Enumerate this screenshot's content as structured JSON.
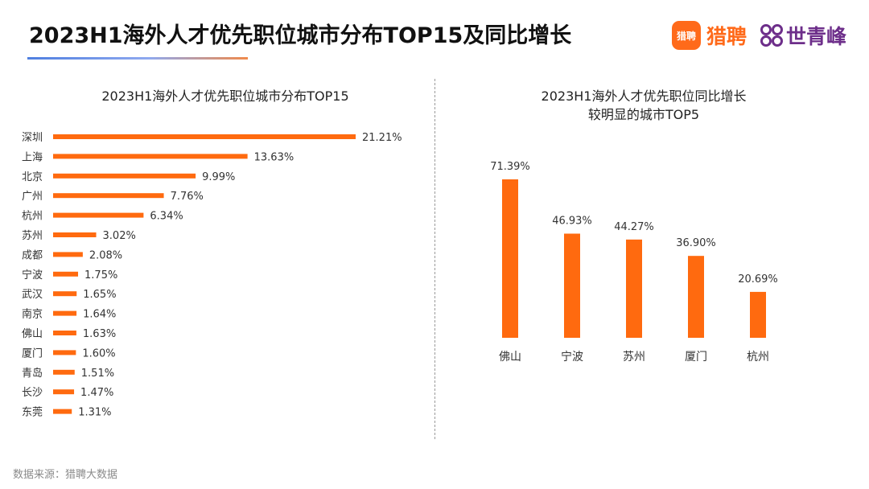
{
  "header": {
    "title": "2023H1海外人才优先职位城市分布TOP15及同比增长",
    "logo_badge": "猎聘",
    "logo_text_a": "猎聘",
    "logo_text_b": "世青峰"
  },
  "footer": {
    "source": "数据来源：猎聘大数据"
  },
  "colors": {
    "bar": "#ff6a0f",
    "accent_blue": "#4f7fe0",
    "logo_orange": "#ff6a1a",
    "logo_purple": "#6d2e8a"
  },
  "chart_data": [
    {
      "type": "bar",
      "orientation": "horizontal",
      "title": "2023H1海外人才优先职位城市分布TOP15",
      "categories": [
        "深圳",
        "上海",
        "北京",
        "广州",
        "杭州",
        "苏州",
        "成都",
        "宁波",
        "武汉",
        "南京",
        "佛山",
        "厦门",
        "青岛",
        "长沙",
        "东莞"
      ],
      "values": [
        21.21,
        13.63,
        9.99,
        7.76,
        6.34,
        3.02,
        2.08,
        1.75,
        1.65,
        1.64,
        1.63,
        1.6,
        1.51,
        1.47,
        1.31
      ],
      "labels": [
        "21.21%",
        "13.63%",
        "9.99%",
        "7.76%",
        "6.34%",
        "3.02%",
        "2.08%",
        "1.75%",
        "1.65%",
        "1.64%",
        "1.63%",
        "1.60%",
        "1.51%",
        "1.47%",
        "1.31%"
      ],
      "unit": "%",
      "xlabel": "",
      "ylabel": "",
      "xlim": [
        0,
        21.21
      ],
      "grid": false
    },
    {
      "type": "bar",
      "orientation": "vertical",
      "title_lines": [
        "2023H1海外人才优先职位同比增长",
        "较明显的城市TOP5"
      ],
      "categories": [
        "佛山",
        "宁波",
        "苏州",
        "厦门",
        "杭州"
      ],
      "values": [
        71.39,
        46.93,
        44.27,
        36.9,
        20.69
      ],
      "labels": [
        "71.39%",
        "46.93%",
        "44.27%",
        "36.90%",
        "20.69%"
      ],
      "unit": "%",
      "xlabel": "",
      "ylabel": "",
      "ylim": [
        0,
        71.39
      ],
      "grid": false
    }
  ]
}
